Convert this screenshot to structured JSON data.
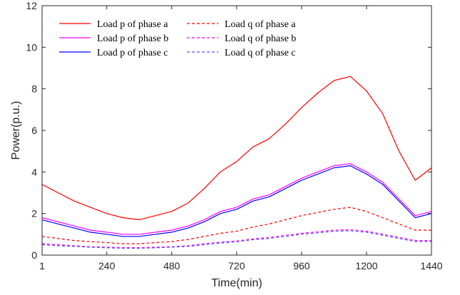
{
  "chart_data": {
    "type": "line",
    "title": "",
    "xlabel": "Time(min)",
    "ylabel": "Power(p.u.)",
    "xlim": [
      1,
      1440
    ],
    "ylim": [
      0,
      12
    ],
    "x_ticks": [
      1,
      240,
      480,
      720,
      960,
      1200,
      1440
    ],
    "x_tick_labels": [
      "1",
      "240",
      "480",
      "720",
      "960",
      "1200",
      "1440"
    ],
    "y_ticks": [
      0,
      2,
      4,
      6,
      8,
      10,
      12
    ],
    "y_tick_labels": [
      "0",
      "2",
      "4",
      "6",
      "8",
      "10",
      "12"
    ],
    "grid": false,
    "legend_position": "top-left",
    "x": [
      1,
      60,
      120,
      180,
      240,
      300,
      360,
      420,
      480,
      540,
      600,
      660,
      720,
      780,
      840,
      900,
      960,
      1020,
      1080,
      1140,
      1200,
      1260,
      1320,
      1380,
      1440
    ],
    "series": [
      {
        "name": "Load p of phase a",
        "color": "#ff0000",
        "dash": "solid",
        "values": [
          3.4,
          3.0,
          2.6,
          2.3,
          2.0,
          1.8,
          1.7,
          1.9,
          2.1,
          2.5,
          3.2,
          4.0,
          4.5,
          5.2,
          5.6,
          6.3,
          7.1,
          7.8,
          8.4,
          8.6,
          7.9,
          6.8,
          5.0,
          3.6,
          4.2
        ]
      },
      {
        "name": "Load p of phase b",
        "color": "#ff00ff",
        "dash": "solid",
        "values": [
          1.8,
          1.6,
          1.4,
          1.2,
          1.1,
          1.0,
          1.0,
          1.1,
          1.2,
          1.4,
          1.7,
          2.1,
          2.3,
          2.7,
          2.9,
          3.3,
          3.7,
          4.0,
          4.3,
          4.4,
          4.0,
          3.5,
          2.7,
          1.9,
          2.1
        ]
      },
      {
        "name": "Load p of phase c",
        "color": "#0000ff",
        "dash": "solid",
        "values": [
          1.7,
          1.5,
          1.3,
          1.1,
          1.0,
          0.9,
          0.9,
          1.0,
          1.1,
          1.3,
          1.6,
          2.0,
          2.2,
          2.6,
          2.8,
          3.2,
          3.6,
          3.9,
          4.2,
          4.3,
          3.9,
          3.4,
          2.6,
          1.8,
          2.0
        ]
      },
      {
        "name": "Load q of phase a",
        "color": "#ff0000",
        "dash": "dashed",
        "values": [
          0.9,
          0.8,
          0.7,
          0.65,
          0.6,
          0.55,
          0.55,
          0.6,
          0.65,
          0.75,
          0.9,
          1.05,
          1.15,
          1.35,
          1.5,
          1.7,
          1.9,
          2.05,
          2.2,
          2.3,
          2.1,
          1.8,
          1.5,
          1.2,
          1.2
        ]
      },
      {
        "name": "Load q of phase b",
        "color": "#ff00ff",
        "dash": "dashed",
        "values": [
          0.55,
          0.5,
          0.45,
          0.4,
          0.38,
          0.36,
          0.36,
          0.38,
          0.4,
          0.45,
          0.55,
          0.62,
          0.68,
          0.78,
          0.85,
          0.95,
          1.05,
          1.12,
          1.2,
          1.22,
          1.15,
          1.0,
          0.85,
          0.7,
          0.7
        ]
      },
      {
        "name": "Load q of phase c",
        "color": "#5555ff",
        "dash": "dashed",
        "values": [
          0.5,
          0.45,
          0.42,
          0.38,
          0.35,
          0.33,
          0.33,
          0.35,
          0.38,
          0.42,
          0.5,
          0.58,
          0.64,
          0.74,
          0.8,
          0.9,
          1.0,
          1.07,
          1.15,
          1.17,
          1.1,
          0.95,
          0.8,
          0.65,
          0.65
        ]
      }
    ]
  }
}
